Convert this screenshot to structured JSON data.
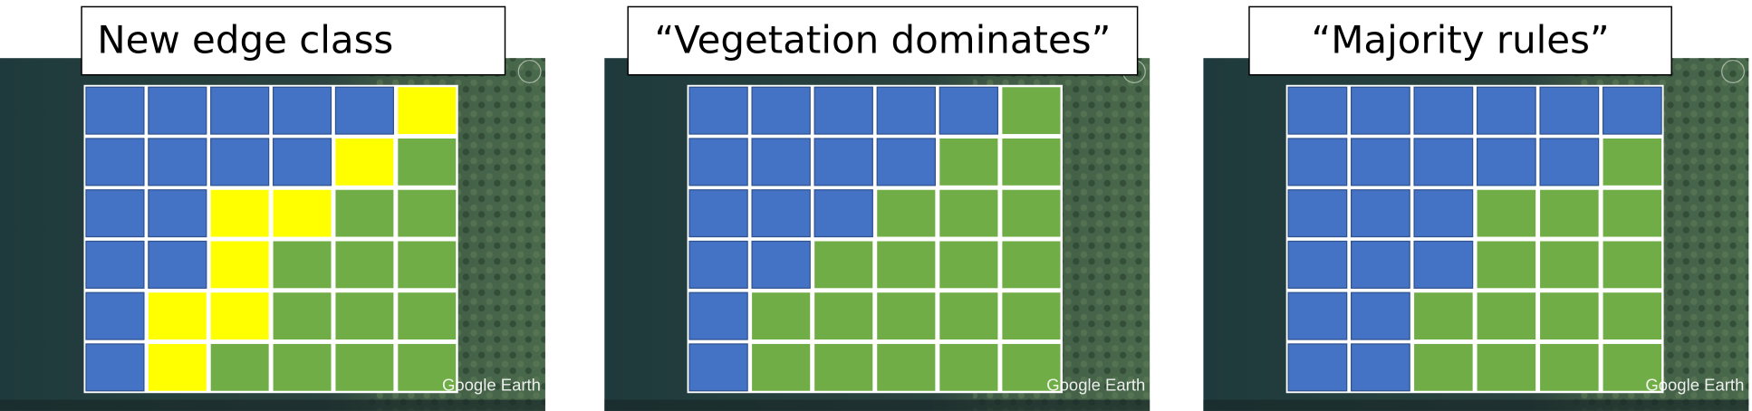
{
  "panels": [
    {
      "title": "New edge class",
      "watermark": "Google Earth"
    },
    {
      "title": "“Vegetation dominates”",
      "watermark": "Google Earth"
    },
    {
      "title": "“Majority rules”",
      "watermark": "Google Earth"
    }
  ]
}
